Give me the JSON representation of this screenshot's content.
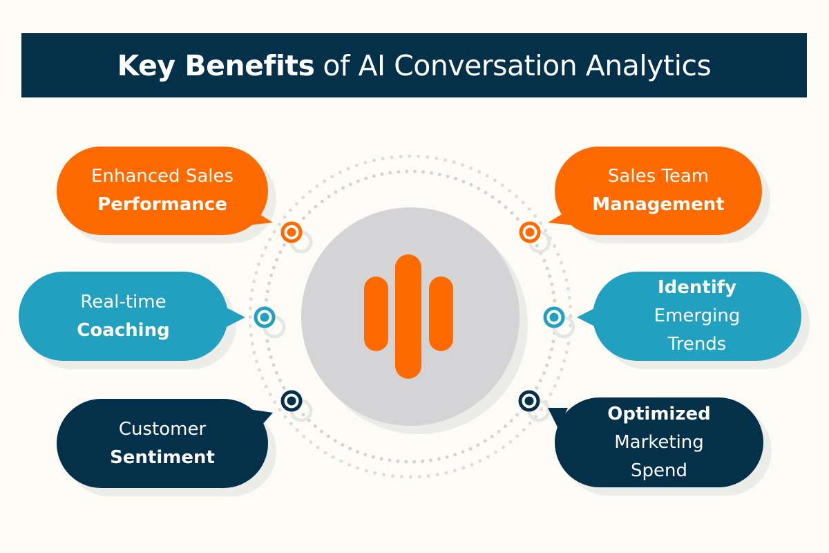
{
  "title": {
    "bold": "Key Benefits",
    "regular": "of AI Conversation Analytics"
  },
  "colors": {
    "background": "#fcfbf6",
    "navy": "#043049",
    "orange": "#ff6a00",
    "teal": "#22a0bf",
    "center_circle": "#d4d4d6"
  },
  "center_icon": "conversation-analytics-bars-logo",
  "benefits": [
    {
      "lines": [
        {
          "text": "Enhanced Sales",
          "bold": false
        },
        {
          "text": "Performance",
          "bold": true
        }
      ],
      "color": "#ff6a00"
    },
    {
      "lines": [
        {
          "text": "Real-time",
          "bold": false
        },
        {
          "text": "Coaching",
          "bold": true
        }
      ],
      "color": "#22a0bf"
    },
    {
      "lines": [
        {
          "text": "Customer",
          "bold": false
        },
        {
          "text": "Sentiment",
          "bold": true
        }
      ],
      "color": "#043049"
    },
    {
      "lines": [
        {
          "text": "Sales Team",
          "bold": false
        },
        {
          "text": "Management",
          "bold": true
        }
      ],
      "color": "#ff6a00"
    },
    {
      "lines": [
        {
          "text": "Identify",
          "bold": true
        },
        {
          "text": "Emerging",
          "bold": false
        },
        {
          "text": "Trends",
          "bold": false
        }
      ],
      "color": "#22a0bf"
    },
    {
      "lines": [
        {
          "text": "Optimized",
          "bold": true
        },
        {
          "text": "Marketing",
          "bold": false
        },
        {
          "text": "Spend",
          "bold": false
        }
      ],
      "color": "#043049"
    }
  ]
}
